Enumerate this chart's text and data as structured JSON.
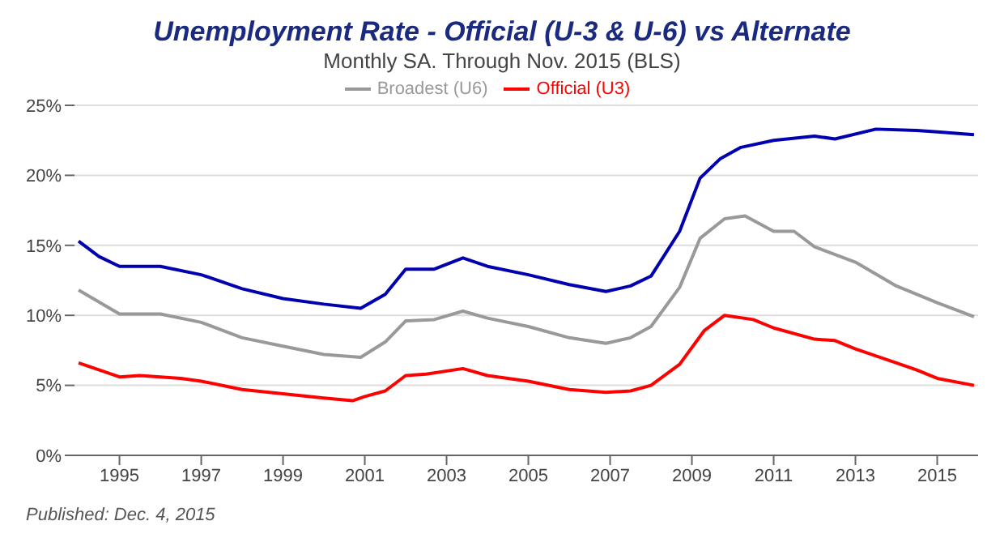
{
  "chart_data": {
    "type": "line",
    "title": "Unemployment Rate - Official (U-3 & U-6) vs Alternate",
    "subtitle": "Monthly SA. Through Nov. 2015  (BLS)",
    "series": [
      {
        "name": "Official (U3)",
        "color": "#ff0000",
        "x": [
          1994,
          1995,
          1995.5,
          1996.5,
          1997,
          1998,
          1999,
          2000,
          2000.7,
          2001,
          2001.5,
          2002,
          2002.5,
          2003.4,
          2004,
          2005,
          2006,
          2006.9,
          2007.5,
          2008,
          2008.7,
          2009.3,
          2009.8,
          2010.5,
          2011,
          2012,
          2012.5,
          2013,
          2014,
          2014.5,
          2015,
          2015.9
        ],
        "values": [
          6.6,
          5.6,
          5.7,
          5.5,
          5.3,
          4.7,
          4.4,
          4.1,
          3.9,
          4.2,
          4.6,
          5.7,
          5.8,
          6.2,
          5.7,
          5.3,
          4.7,
          4.5,
          4.6,
          5.0,
          6.5,
          8.9,
          10.0,
          9.7,
          9.1,
          8.3,
          8.2,
          7.6,
          6.6,
          6.1,
          5.5,
          5.0
        ]
      },
      {
        "name": "Broadest (U6)",
        "color": "#999999",
        "x": [
          1994,
          1995,
          1996,
          1997,
          1998,
          1999,
          2000,
          2000.9,
          2001.5,
          2002,
          2002.7,
          2003.4,
          2004,
          2005,
          2006,
          2006.9,
          2007.5,
          2008,
          2008.7,
          2009.2,
          2009.8,
          2010.3,
          2011,
          2011.5,
          2012,
          2013,
          2014,
          2015,
          2015.9
        ],
        "values": [
          11.8,
          10.1,
          10.1,
          9.5,
          8.4,
          7.8,
          7.2,
          7.0,
          8.1,
          9.6,
          9.7,
          10.3,
          9.8,
          9.2,
          8.4,
          8.0,
          8.4,
          9.2,
          12.0,
          15.5,
          16.9,
          17.1,
          16.0,
          16.0,
          14.9,
          13.8,
          12.1,
          10.9,
          9.9
        ]
      },
      {
        "color": "#0000b0",
        "x": [
          1994,
          1994.5,
          1995,
          1996,
          1997,
          1998,
          1999,
          2000,
          2000.9,
          2001.5,
          2002,
          2002.7,
          2003.4,
          2004,
          2005,
          2006,
          2006.9,
          2007.5,
          2008,
          2008.7,
          2009.2,
          2009.7,
          2010.2,
          2011,
          2012,
          2012.5,
          2013.5,
          2014.5,
          2015,
          2015.9
        ],
        "values": [
          15.3,
          14.2,
          13.5,
          13.5,
          12.9,
          11.9,
          11.2,
          10.8,
          10.5,
          11.5,
          13.3,
          13.3,
          14.1,
          13.5,
          12.9,
          12.2,
          11.7,
          12.1,
          12.8,
          16.0,
          19.8,
          21.2,
          22.0,
          22.5,
          22.8,
          22.6,
          23.3,
          23.2,
          23.1,
          22.9
        ]
      }
    ],
    "xlim": [
      1993.9,
      2016
    ],
    "xticks": [
      1995,
      1997,
      1999,
      2001,
      2003,
      2005,
      2007,
      2009,
      2011,
      2013,
      2015
    ],
    "ylim": [
      0,
      25
    ],
    "yticks": [
      {
        "value": 0,
        "label": "0%"
      },
      {
        "value": 5,
        "label": "5%"
      },
      {
        "value": 10,
        "label": "10%"
      },
      {
        "value": 15,
        "label": "15%"
      },
      {
        "value": 20,
        "label": "20%"
      },
      {
        "value": 25,
        "label": "25%"
      }
    ],
    "grid": "y",
    "legend": "top",
    "marker": "none",
    "line_style": "solid",
    "annotations": [
      "Published: Dec. 4, 2015"
    ]
  }
}
